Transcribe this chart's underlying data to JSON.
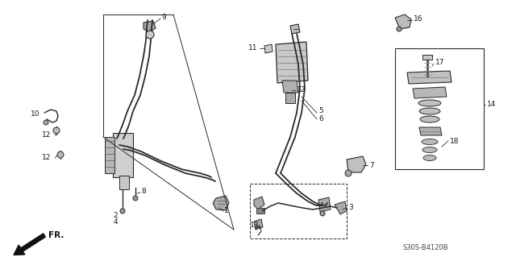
{
  "bg_color": "#e8e6e0",
  "line_color": "#2a2a2a",
  "text_color": "#1a1a1a",
  "watermark": "S30S-B4120B",
  "fr_label": "FR.",
  "fig_width": 6.4,
  "fig_height": 3.19,
  "dpi": 100,
  "white": "#ffffff",
  "gray1": "#888888",
  "gray2": "#555555",
  "gray3": "#aaaaaa"
}
